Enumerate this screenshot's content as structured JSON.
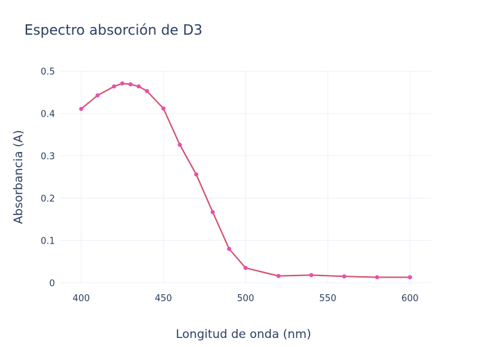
{
  "chart_data": {
    "type": "line",
    "title": "Espectro absorción de D3",
    "xlabel": "Longitud de onda (nm)",
    "ylabel": "Absorbancia (A)",
    "xlim": [
      387,
      613
    ],
    "ylim": [
      -0.001,
      0.501
    ],
    "xticks": [
      400,
      450,
      500,
      550,
      600
    ],
    "yticks": [
      0,
      0.1,
      0.2,
      0.3,
      0.4,
      0.5
    ],
    "ytick_labels": [
      "0",
      "0.1",
      "0.2",
      "0.3",
      "0.4",
      "0.5"
    ],
    "grid": true,
    "series": [
      {
        "line_color": "#d2506a",
        "marker_color": "#e94fb0",
        "x": [
          400,
          410,
          420,
          425,
          430,
          435,
          440,
          450,
          460,
          470,
          480,
          490,
          500,
          520,
          540,
          560,
          580,
          600
        ],
        "y": [
          0.411,
          0.443,
          0.464,
          0.471,
          0.469,
          0.464,
          0.453,
          0.412,
          0.326,
          0.256,
          0.167,
          0.08,
          0.035,
          0.016,
          0.018,
          0.015,
          0.013,
          0.013
        ]
      }
    ]
  }
}
